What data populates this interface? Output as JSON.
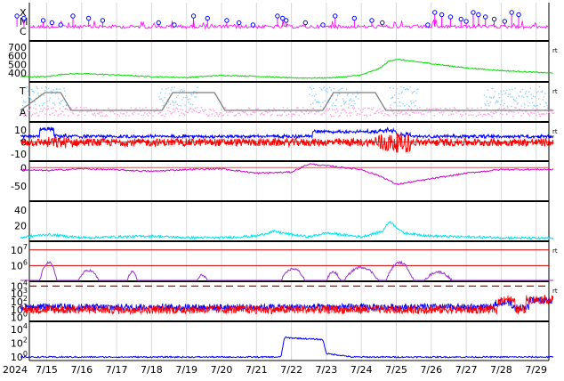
{
  "chart_data": [
    {
      "type": "line",
      "title": "",
      "x_axis": {
        "year_label": "2024",
        "ticks": [
          "7/15",
          "7/16",
          "7/17",
          "7/18",
          "7/19",
          "7/20",
          "7/21",
          "7/22",
          "7/23",
          "7/24",
          "7/25",
          "7/26",
          "7/27",
          "7/28",
          "7/29"
        ],
        "range": [
          "2024-07-14",
          "2024-07-29T12:00"
        ]
      },
      "panels": [
        {
          "id": "xray_flare_class",
          "y_labels": [
            "X",
            "M",
            "C"
          ],
          "colors": {
            "trace": "#ff00ff",
            "event_markers": "#0000ff"
          },
          "markers_x_days": [
            0.15,
            0.35,
            0.9,
            1.15,
            1.4,
            1.75,
            2.2,
            2.6,
            4.2,
            4.65,
            5.2,
            5.6,
            6.15,
            6.5,
            6.9,
            7.6,
            7.75,
            7.85,
            8.4,
            8.9,
            9.25,
            9.8,
            10.3,
            10.6,
            11.9,
            12.1,
            12.3,
            12.55,
            12.85,
            13.0,
            13.2,
            13.35,
            13.55,
            13.8,
            14.1,
            14.3,
            14.5
          ]
        },
        {
          "id": "solar_wind_speed",
          "y_ticks": [
            400,
            500,
            600,
            700
          ],
          "ylim": [
            300,
            760
          ],
          "right_label": "rt",
          "colors": {
            "trace": "#00dd00"
          },
          "series": [
            {
              "x": [
                0,
                1,
                1.5,
                2,
                3,
                4,
                5,
                6,
                7,
                8,
                9,
                9.6,
                10,
                10.5,
                10.8,
                11,
                12,
                13,
                14,
                15.5
              ],
              "y": [
                360,
                360,
                390,
                395,
                380,
                360,
                350,
                375,
                365,
                345,
                345,
                360,
                380,
                450,
                540,
                560,
                510,
                460,
                430,
                400
              ]
            }
          ]
        },
        {
          "id": "proton_temperature_alpha",
          "y_labels": [
            "T",
            "A"
          ],
          "right_label": "rt",
          "colors": {
            "temperature": "#87cefa",
            "alpha": "#ffa0e0",
            "model": "#808080"
          }
        },
        {
          "id": "imf_bt_bz",
          "y_ticks": [
            -10,
            0,
            10
          ],
          "ylim": [
            -16,
            16
          ],
          "right_label": "rt",
          "colors": {
            "bt": "#0000ff",
            "bz": "#ff0000",
            "zero": "#c06060"
          }
        },
        {
          "id": "dst_index",
          "y_ticks": [
            -50,
            0
          ],
          "ylim": [
            -90,
            15
          ],
          "colors": {
            "trace": "#cc00cc",
            "zero": "#c06060"
          },
          "series": [
            {
              "x": [
                0,
                1,
                2,
                3,
                4,
                5,
                6,
                6.6,
                7,
                8,
                8.5,
                9,
                10,
                10.6,
                11,
                12,
                13,
                14,
                15.5
              ],
              "y": [
                -5,
                -8,
                -3,
                -6,
                -10,
                -5,
                -3,
                -10,
                -15,
                -12,
                10,
                5,
                -5,
                -25,
                -45,
                -30,
                -15,
                -5,
                -5
              ]
            }
          ]
        },
        {
          "id": "proton_density",
          "y_ticks": [
            20,
            40
          ],
          "ylim": [
            0,
            50
          ],
          "colors": {
            "trace": "#00e5ee"
          },
          "series": [
            {
              "x": [
                0,
                1,
                2,
                3,
                4,
                5,
                6,
                7,
                7.5,
                8,
                8.5,
                9,
                10,
                10.6,
                10.8,
                11.2,
                12,
                13,
                14,
                15.5
              ],
              "y": [
                3,
                8,
                4,
                5,
                6,
                4,
                4,
                6,
                12,
                8,
                5,
                10,
                5,
                12,
                25,
                10,
                6,
                5,
                4,
                3
              ]
            }
          ]
        },
        {
          "id": "electron_flux",
          "y_ticks": [
            "10^6",
            "10^7"
          ],
          "ylim_log": [
            5,
            7.5
          ],
          "right_label": "rt",
          "colors": {
            "trace": "#9932cc",
            "thresholds": "#cc0000"
          },
          "threshold_values": [
            1000000,
            10000000
          ]
        },
        {
          "id": "proton_flux",
          "y_ticks": [
            "10^0",
            "10^1",
            "10^2",
            "10^3",
            "10^4"
          ],
          "ylim_log": [
            -0.5,
            4.5
          ],
          "right_label": "rt",
          "colors": {
            "p10": "#0000ff",
            "p1": "#ff0000",
            "threshold": "#cc0000"
          },
          "threshold_value": 10000
        },
        {
          "id": "high_energy_proton_flux",
          "y_ticks": [
            "10^0",
            "10^2",
            "10^4"
          ],
          "ylim_log": [
            -0.5,
            5
          ],
          "colors": {
            "trace": "#0000ff"
          },
          "series": [
            {
              "x": [
                0,
                7.7,
                7.8,
                8.9,
                9.0,
                9.5,
                9.7,
                15.5
              ],
              "y": [
                0,
                0,
                2.8,
                2.5,
                0.5,
                0.2,
                0,
                0
              ]
            }
          ]
        }
      ]
    }
  ]
}
